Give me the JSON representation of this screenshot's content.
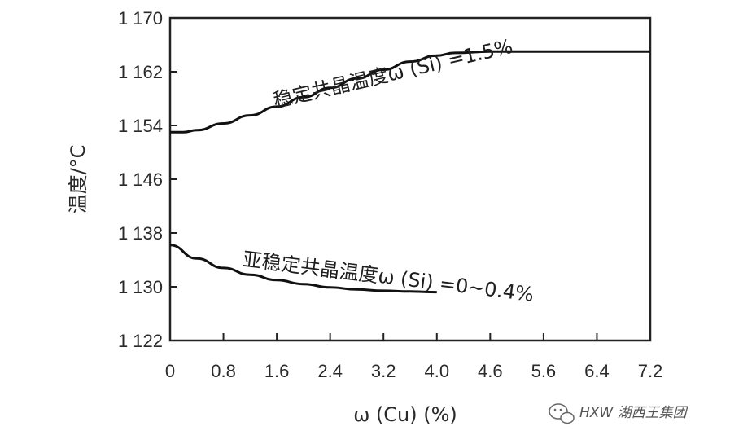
{
  "chart_data": {
    "type": "line",
    "xlabel": "ω (Cu) (%)",
    "ylabel": "温度/°C",
    "x_ticks": [
      0,
      0.8,
      1.6,
      2.4,
      3.2,
      4.0,
      4.6,
      5.6,
      6.4,
      7.2
    ],
    "x_tick_labels": [
      "0",
      "0.8",
      "1.6",
      "2.4",
      "3.2",
      "4.0",
      "4.6",
      "5.6",
      "6.4",
      "7.2"
    ],
    "y_ticks": [
      1122,
      1130,
      1138,
      1146,
      1154,
      1162,
      1170
    ],
    "y_tick_labels": [
      "1 122",
      "1 130",
      "1 138",
      "1 146",
      "1 154",
      "1 162",
      "1 170"
    ],
    "xlim": [
      0,
      7.2
    ],
    "ylim": [
      1122,
      1170
    ],
    "grid": false,
    "series": [
      {
        "x": [
          0,
          0.2,
          0.4,
          0.8,
          1.2,
          1.6,
          2.0,
          2.4,
          2.8,
          3.2,
          3.6,
          4.0,
          4.2,
          4.6,
          5.0,
          5.6,
          6.4,
          7.2
        ],
        "y": [
          1153.0,
          1153.0,
          1153.3,
          1154.3,
          1155.5,
          1156.8,
          1158.2,
          1159.6,
          1161.0,
          1162.3,
          1163.5,
          1164.4,
          1164.8,
          1165.0,
          1165.0,
          1165.0,
          1165.0,
          1165.0
        ]
      },
      {
        "x": [
          0,
          0.4,
          0.8,
          1.2,
          1.6,
          2.0,
          2.4,
          2.8,
          3.2,
          3.6,
          4.0
        ],
        "y": [
          1136.2,
          1134.2,
          1132.8,
          1131.8,
          1131.0,
          1130.4,
          1129.9,
          1129.6,
          1129.4,
          1129.3,
          1129.2
        ]
      }
    ],
    "annotations": [
      {
        "text": "稳定共晶温度ω (Si) =1.5%"
      },
      {
        "text": "亚稳定共晶温度ω (Si) =0~0.4%"
      }
    ]
  },
  "watermark": {
    "text": "HXW 湖西王集团",
    "icon": "wechat-icon"
  }
}
